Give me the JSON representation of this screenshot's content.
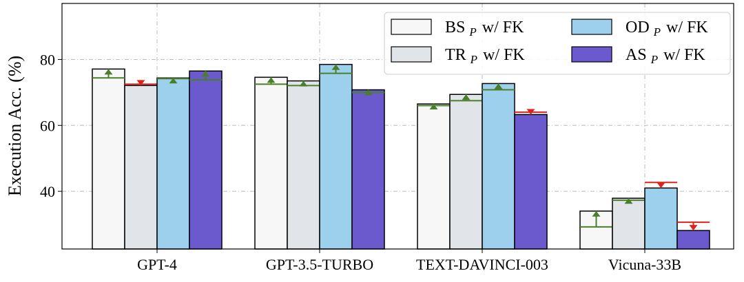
{
  "chart_data": {
    "type": "bar",
    "y_label": "Execution Acc. (%)",
    "categories": [
      "GPT-4",
      "GPT-3.5-TURBO",
      "TEXT-DAVINCI-003",
      "Vicuna-33B"
    ],
    "ylim": [
      22.5,
      97
    ],
    "yticks": [
      40,
      60,
      80
    ],
    "grid": true,
    "legend": "upper right",
    "increase_color": "#4a7f2a",
    "decrease_color": "#e0201b",
    "series": [
      {
        "name": "BS",
        "name_sub": "P",
        "name_suffix": "w/ FK",
        "color": "#f7f7f7",
        "values": [
          77.1,
          74.6,
          66.5,
          34.0
        ],
        "baseline_values": [
          74.4,
          72.5,
          66.0,
          29.2
        ]
      },
      {
        "name": "TR",
        "name_sub": "P",
        "name_suffix": "w/ FK",
        "color": "#e1e4e8",
        "values": [
          72.1,
          73.5,
          69.4,
          37.9
        ],
        "baseline_values": [
          72.5,
          72.1,
          67.5,
          37.3
        ]
      },
      {
        "name": "OD",
        "name_sub": "P",
        "name_suffix": "w/ FK",
        "color": "#9dd0ec",
        "values": [
          74.4,
          78.5,
          72.7,
          41.0
        ],
        "baseline_values": [
          74.2,
          75.8,
          70.8,
          42.7
        ]
      },
      {
        "name": "AS",
        "name_sub": "P",
        "name_suffix": "w/ FK",
        "color": "#6a5acd",
        "values": [
          76.5,
          70.8,
          63.3,
          28.1
        ],
        "baseline_values": [
          73.8,
          70.0,
          64.0,
          30.6
        ]
      }
    ]
  }
}
